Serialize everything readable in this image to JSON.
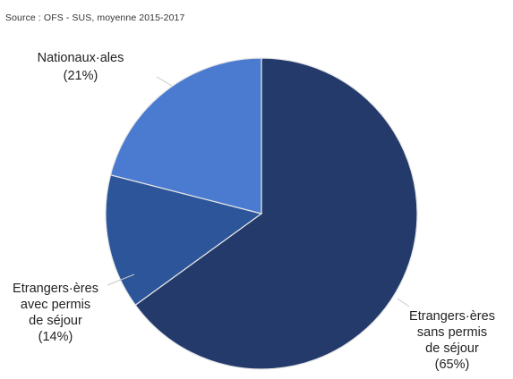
{
  "source_note": "Source : OFS - SUS, moyenne 2015-2017",
  "chart_data": {
    "type": "pie",
    "slices": [
      {
        "label": [
          "Etrangers·ères",
          "sans permis",
          "de séjour",
          "(65%)"
        ],
        "value": 65,
        "color": "#233a6b"
      },
      {
        "label": [
          "Etrangers·ères",
          "avec permis",
          "de séjour",
          "(14%)"
        ],
        "value": 14,
        "color": "#2d5599"
      },
      {
        "label": [
          "Nationaux·ales",
          "(21%)"
        ],
        "value": 21,
        "color": "#4a7bd0"
      }
    ],
    "start_angle_deg": 0,
    "direction": "clockwise",
    "slice_border_color": "#e6e6e6"
  }
}
